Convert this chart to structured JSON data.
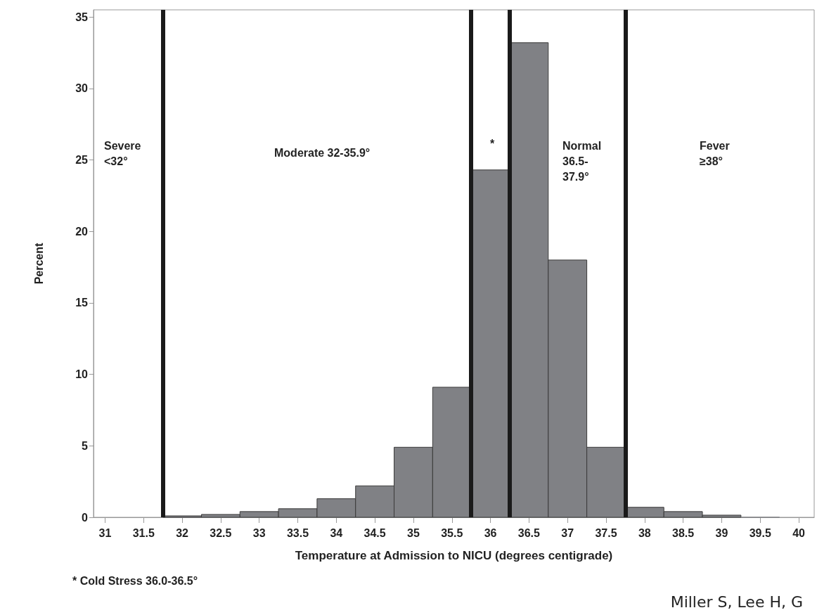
{
  "chart_data": {
    "type": "histogram",
    "xlabel": "Temperature at Admission to NICU (degrees centigrade)",
    "ylabel": "Percent",
    "bins": [
      31.75,
      32.25,
      32.75,
      33.25,
      33.75,
      34.25,
      34.75,
      35.25,
      35.75,
      36.25,
      36.75,
      37.25,
      37.75,
      38.25,
      38.75,
      39.25,
      39.75
    ],
    "values": [
      0.1,
      0.2,
      0.4,
      0.6,
      1.3,
      2.2,
      4.9,
      9.1,
      24.3,
      33.2,
      18.0,
      4.9,
      0.7,
      0.4,
      0.15,
      0
    ],
    "color": "#808185",
    "xlim": [
      30.85,
      40.2
    ],
    "xticks": [
      31,
      31.5,
      32,
      32.5,
      33,
      33.5,
      34,
      34.5,
      35,
      35.5,
      36,
      36.5,
      37,
      37.5,
      38,
      38.5,
      39,
      39.5,
      40
    ],
    "ylim": [
      0,
      35.5
    ],
    "yticks": [
      0,
      5,
      10,
      15,
      20,
      25,
      30,
      35
    ],
    "grid": false,
    "ref_lines": [
      {
        "axis": "x",
        "value": 31.75,
        "color": "#1a1a1a"
      },
      {
        "axis": "x",
        "value": 35.75,
        "color": "#1a1a1a"
      },
      {
        "axis": "x",
        "value": 36.25,
        "color": "#1a1a1a"
      },
      {
        "axis": "x",
        "value": 37.75,
        "color": "#1a1a1a"
      }
    ],
    "annotations": [
      "Severe\n<32°",
      "Moderate 32-35.9°",
      "*",
      "Normal\n36.5-\n37.9°",
      "Fever\n≥38°",
      "* Cold Stress 36.0-36.5°",
      "Miller S, Lee H, G"
    ]
  }
}
